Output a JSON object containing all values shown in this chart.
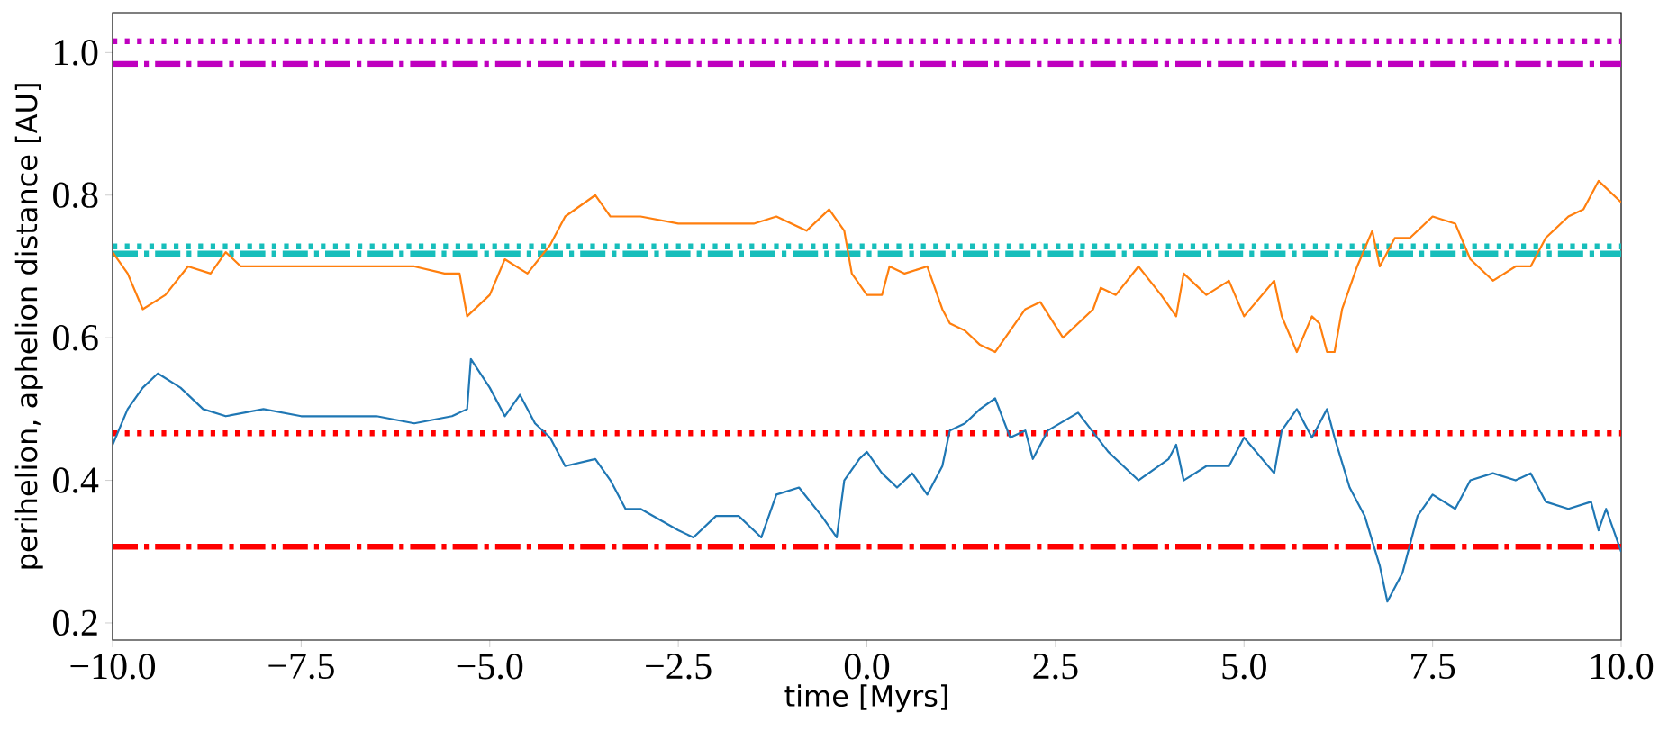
{
  "chart_data": {
    "type": "line",
    "xlabel": "time [Myrs]",
    "ylabel": "perihelion, aphelion distance [AU]",
    "xlim": [
      -10,
      10
    ],
    "ylim": [
      0.176,
      1.056
    ],
    "xticks": [
      {
        "value": -10,
        "label": "−10.0"
      },
      {
        "value": -7.5,
        "label": "−7.5"
      },
      {
        "value": -5,
        "label": "−5.0"
      },
      {
        "value": -2.5,
        "label": "−2.5"
      },
      {
        "value": 0,
        "label": "0.0"
      },
      2.5,
      {
        "value": 5,
        "label": "5.0"
      },
      7.5,
      {
        "value": 10,
        "label": "10.0"
      }
    ],
    "yticks": [
      0.2,
      0.4,
      0.6,
      0.8,
      {
        "value": 1.0,
        "label": "1.0"
      }
    ],
    "grid": false,
    "marker": "none",
    "line_style": "solid",
    "series": [
      {
        "color": "#ff7f0e",
        "x": [
          -10,
          -9.8,
          -9.6,
          -9.3,
          -9.0,
          -8.7,
          -8.5,
          -8.3,
          -8.0,
          -7.5,
          -7.0,
          -6.5,
          -6.0,
          -5.6,
          -5.4,
          -5.3,
          -5.0,
          -4.8,
          -4.5,
          -4.2,
          -4.0,
          -3.6,
          -3.4,
          -3.0,
          -2.5,
          -2.0,
          -1.5,
          -1.2,
          -0.8,
          -0.5,
          -0.3,
          -0.2,
          0.0,
          0.2,
          0.3,
          0.5,
          0.8,
          1.0,
          1.1,
          1.3,
          1.5,
          1.7,
          1.9,
          2.1,
          2.3,
          2.6,
          3.0,
          3.1,
          3.3,
          3.6,
          3.9,
          4.1,
          4.2,
          4.5,
          4.8,
          5.0,
          5.4,
          5.5,
          5.7,
          5.9,
          6.0,
          6.1,
          6.2,
          6.3,
          6.5,
          6.7,
          6.8,
          7.0,
          7.2,
          7.5,
          7.8,
          8.0,
          8.3,
          8.6,
          8.8,
          9.0,
          9.3,
          9.5,
          9.7,
          9.9,
          10
        ],
        "values": [
          0.72,
          0.69,
          0.64,
          0.66,
          0.7,
          0.69,
          0.72,
          0.7,
          0.7,
          0.7,
          0.7,
          0.7,
          0.7,
          0.69,
          0.69,
          0.63,
          0.66,
          0.71,
          0.69,
          0.73,
          0.77,
          0.8,
          0.77,
          0.77,
          0.76,
          0.76,
          0.76,
          0.77,
          0.75,
          0.78,
          0.75,
          0.69,
          0.66,
          0.66,
          0.7,
          0.69,
          0.7,
          0.64,
          0.62,
          0.61,
          0.59,
          0.58,
          0.61,
          0.64,
          0.65,
          0.6,
          0.64,
          0.67,
          0.66,
          0.7,
          0.66,
          0.63,
          0.69,
          0.66,
          0.68,
          0.63,
          0.68,
          0.63,
          0.58,
          0.63,
          0.62,
          0.58,
          0.58,
          0.64,
          0.7,
          0.75,
          0.7,
          0.74,
          0.74,
          0.77,
          0.76,
          0.71,
          0.68,
          0.7,
          0.7,
          0.74,
          0.77,
          0.78,
          0.82,
          0.8,
          0.79
        ]
      },
      {
        "color": "#1f77b4",
        "x": [
          -10,
          -9.8,
          -9.6,
          -9.4,
          -9.1,
          -8.8,
          -8.5,
          -8.0,
          -7.5,
          -7.0,
          -6.5,
          -6.0,
          -5.5,
          -5.3,
          -5.25,
          -5.0,
          -4.8,
          -4.6,
          -4.4,
          -4.2,
          -4.0,
          -3.6,
          -3.4,
          -3.2,
          -3.0,
          -2.5,
          -2.3,
          -2.0,
          -1.7,
          -1.4,
          -1.2,
          -0.9,
          -0.6,
          -0.4,
          -0.3,
          -0.1,
          0.0,
          0.2,
          0.4,
          0.6,
          0.8,
          1.0,
          1.1,
          1.3,
          1.5,
          1.7,
          1.9,
          2.1,
          2.2,
          2.4,
          2.8,
          3.2,
          3.6,
          4.0,
          4.1,
          4.2,
          4.5,
          4.8,
          5.0,
          5.4,
          5.5,
          5.7,
          5.9,
          6.1,
          6.2,
          6.4,
          6.6,
          6.8,
          6.9,
          7.1,
          7.3,
          7.5,
          7.8,
          8.0,
          8.3,
          8.6,
          8.8,
          9.0,
          9.3,
          9.6,
          9.7,
          9.8,
          10
        ],
        "values": [
          0.45,
          0.5,
          0.53,
          0.55,
          0.53,
          0.5,
          0.49,
          0.5,
          0.49,
          0.49,
          0.49,
          0.48,
          0.49,
          0.5,
          0.57,
          0.53,
          0.49,
          0.52,
          0.48,
          0.46,
          0.42,
          0.43,
          0.4,
          0.36,
          0.36,
          0.33,
          0.32,
          0.35,
          0.35,
          0.32,
          0.38,
          0.39,
          0.35,
          0.32,
          0.4,
          0.43,
          0.44,
          0.41,
          0.39,
          0.41,
          0.38,
          0.42,
          0.47,
          0.48,
          0.5,
          0.515,
          0.46,
          0.47,
          0.43,
          0.47,
          0.495,
          0.44,
          0.4,
          0.43,
          0.45,
          0.4,
          0.42,
          0.42,
          0.46,
          0.41,
          0.47,
          0.5,
          0.46,
          0.5,
          0.46,
          0.39,
          0.35,
          0.28,
          0.23,
          0.27,
          0.35,
          0.38,
          0.36,
          0.4,
          0.41,
          0.4,
          0.41,
          0.37,
          0.36,
          0.37,
          0.33,
          0.36,
          0.3
        ]
      }
    ],
    "ref_lines": [
      {
        "axis": "y",
        "value": 1.016,
        "color": "#bf00bf",
        "line_style": "dotted"
      },
      {
        "axis": "y",
        "value": 0.984,
        "color": "#bf00bf",
        "line_style": "dashdot"
      },
      {
        "axis": "y",
        "value": 0.728,
        "color": "#17bebb",
        "line_style": "dotted"
      },
      {
        "axis": "y",
        "value": 0.718,
        "color": "#17bebb",
        "line_style": "dashdot"
      },
      {
        "axis": "y",
        "value": 0.466,
        "color": "#ff0000",
        "line_style": "dotted"
      },
      {
        "axis": "y",
        "value": 0.307,
        "color": "#ff0000",
        "line_style": "dashdot"
      }
    ]
  }
}
